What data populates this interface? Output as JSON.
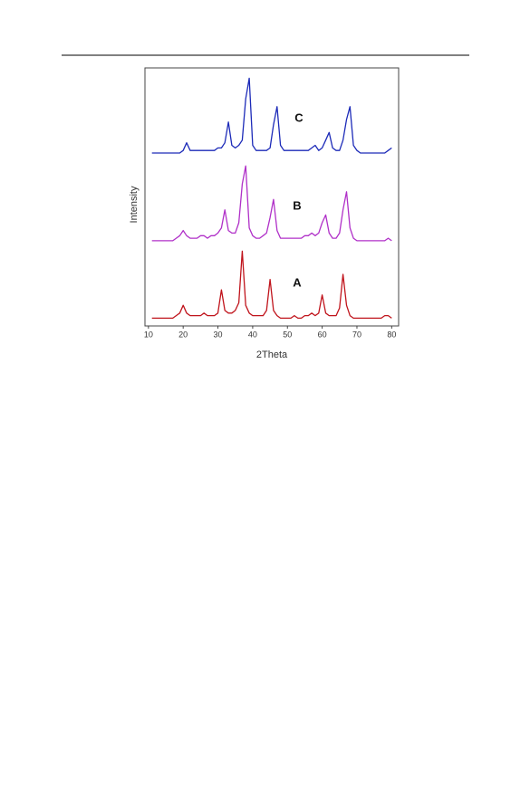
{
  "chart_data": {
    "type": "line",
    "x_label": "2Theta",
    "y_label": "Intensity",
    "xlim": [
      9,
      82
    ],
    "xticks": [
      10,
      20,
      30,
      40,
      50,
      60,
      70,
      80
    ],
    "ylim": [
      0,
      100
    ],
    "x": [
      11,
      12,
      13,
      14,
      15,
      16,
      17,
      18,
      19,
      20,
      21,
      22,
      23,
      24,
      25,
      26,
      27,
      28,
      29,
      30,
      31,
      32,
      33,
      34,
      35,
      36,
      37,
      38,
      39,
      40,
      41,
      42,
      43,
      44,
      45,
      46,
      47,
      48,
      49,
      50,
      51,
      52,
      53,
      54,
      55,
      56,
      57,
      58,
      59,
      60,
      61,
      62,
      63,
      64,
      65,
      66,
      67,
      68,
      69,
      70,
      71,
      72,
      73,
      74,
      75,
      76,
      77,
      78,
      79,
      80
    ],
    "series": [
      {
        "name": "A",
        "color": "#c0141c",
        "values": [
          3,
          3,
          3,
          3,
          3,
          3,
          3,
          4,
          5,
          8,
          5,
          4,
          4,
          4,
          4,
          5,
          4,
          4,
          4,
          5,
          14,
          6,
          5,
          5,
          6,
          9,
          29,
          8,
          5,
          4,
          4,
          4,
          4,
          6,
          18,
          6,
          4,
          3,
          3,
          3,
          3,
          4,
          3,
          3,
          4,
          4,
          5,
          4,
          5,
          12,
          5,
          4,
          4,
          4,
          7,
          20,
          8,
          4,
          3,
          3,
          3,
          3,
          3,
          3,
          3,
          3,
          3,
          4,
          4,
          3
        ]
      },
      {
        "name": "B",
        "color": "#b030c8",
        "values": [
          33,
          33,
          33,
          33,
          33,
          33,
          33,
          34,
          35,
          37,
          35,
          34,
          34,
          34,
          35,
          35,
          34,
          35,
          35,
          36,
          38,
          45,
          37,
          36,
          36,
          40,
          55,
          62,
          38,
          35,
          34,
          34,
          35,
          36,
          42,
          49,
          37,
          34,
          34,
          34,
          34,
          34,
          34,
          34,
          35,
          35,
          36,
          35,
          36,
          40,
          43,
          36,
          34,
          34,
          36,
          45,
          52,
          38,
          34,
          33,
          33,
          33,
          33,
          33,
          33,
          33,
          33,
          33,
          34,
          33
        ]
      },
      {
        "name": "C",
        "color": "#1c2ab8",
        "values": [
          67,
          67,
          67,
          67,
          67,
          67,
          67,
          67,
          67,
          68,
          71,
          68,
          68,
          68,
          68,
          68,
          68,
          68,
          68,
          69,
          69,
          71,
          79,
          70,
          69,
          70,
          72,
          88,
          96,
          70,
          68,
          68,
          68,
          68,
          69,
          78,
          85,
          70,
          68,
          68,
          68,
          68,
          68,
          68,
          68,
          68,
          69,
          70,
          68,
          69,
          72,
          75,
          69,
          68,
          68,
          72,
          80,
          85,
          70,
          68,
          67,
          67,
          67,
          67,
          67,
          67,
          67,
          67,
          68,
          69
        ]
      }
    ]
  }
}
